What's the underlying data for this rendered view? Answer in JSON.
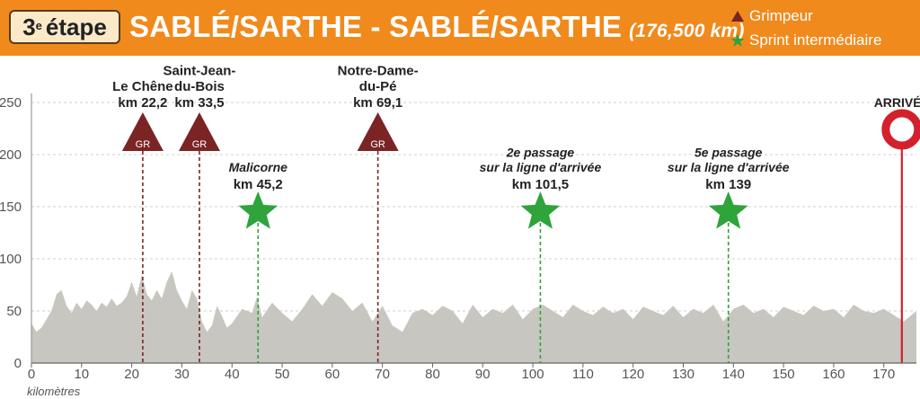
{
  "header": {
    "stage_number": "3",
    "stage_suffix": "e",
    "stage_word": "étape",
    "route": "SABLÉ/SARTHE - SABLÉ/SARTHE",
    "distance": "(176,500 km)"
  },
  "legend": [
    {
      "label": "Grimpeur",
      "symbol": "triangle",
      "color": "#7b2424"
    },
    {
      "label": "Sprint intermédiaire",
      "symbol": "star",
      "color": "#2ea43a"
    }
  ],
  "colors": {
    "header": "#f08a1d",
    "profile_fill": "#c8c6c1",
    "climb": "#7b2424",
    "sprint": "#2ea43a",
    "finish": "#d4202c",
    "grid": "#cfcfcf"
  },
  "chart_data": {
    "type": "area",
    "title": "SABLÉ/SARTHE - SABLÉ/SARTHE",
    "xlabel": "kilomètres",
    "ylabel": "",
    "xlim": [
      0,
      176.5
    ],
    "ylim": [
      0,
      250
    ],
    "x_ticks": [
      0,
      10,
      20,
      30,
      40,
      50,
      60,
      70,
      80,
      90,
      100,
      110,
      120,
      130,
      140,
      150,
      160,
      170
    ],
    "y_ticks": [
      0,
      50,
      100,
      150,
      200,
      250
    ],
    "grid": "horizontal dashed",
    "profile": {
      "x": [
        0,
        1,
        2,
        3,
        4,
        5,
        6,
        7,
        8,
        9,
        10,
        11,
        12,
        13,
        14,
        15,
        16,
        17,
        18,
        19,
        20,
        21,
        22,
        23,
        24,
        25,
        26,
        27,
        28,
        29,
        30,
        31,
        32,
        33,
        34,
        35,
        36,
        37,
        38,
        39,
        40,
        42,
        44,
        45,
        46,
        48,
        50,
        52,
        54,
        56,
        58,
        60,
        62,
        64,
        66,
        68,
        70,
        72,
        74,
        76,
        78,
        80,
        82,
        84,
        86,
        88,
        90,
        92,
        94,
        96,
        98,
        100,
        102,
        104,
        106,
        108,
        110,
        112,
        114,
        116,
        118,
        120,
        122,
        124,
        126,
        128,
        130,
        132,
        134,
        136,
        138,
        140,
        142,
        144,
        146,
        148,
        150,
        152,
        154,
        156,
        158,
        160,
        162,
        164,
        166,
        168,
        170,
        172,
        174,
        176.5
      ],
      "y": [
        38,
        30,
        34,
        42,
        50,
        66,
        70,
        55,
        48,
        58,
        52,
        60,
        56,
        50,
        58,
        54,
        62,
        55,
        58,
        64,
        78,
        64,
        85,
        66,
        60,
        70,
        62,
        78,
        88,
        70,
        60,
        52,
        70,
        62,
        40,
        30,
        36,
        55,
        45,
        34,
        38,
        52,
        48,
        64,
        44,
        58,
        48,
        40,
        52,
        66,
        55,
        68,
        62,
        50,
        58,
        40,
        55,
        36,
        30,
        48,
        52,
        46,
        55,
        50,
        38,
        56,
        44,
        52,
        48,
        56,
        42,
        52,
        56,
        50,
        44,
        56,
        50,
        46,
        54,
        48,
        52,
        42,
        54,
        50,
        46,
        55,
        44,
        52,
        48,
        56,
        40,
        52,
        56,
        48,
        52,
        44,
        54,
        50,
        46,
        55,
        50,
        52,
        44,
        56,
        50,
        48,
        52,
        46,
        40,
        50
      ]
    },
    "climbs": [
      {
        "name": "Le Chêne",
        "km": 22.2,
        "km_label": "km 22,2",
        "badge": "GR"
      },
      {
        "name": "Saint-Jean-\ndu-Bois",
        "km": 33.5,
        "km_label": "km 33,5",
        "badge": "GR"
      },
      {
        "name": "Notre-Dame-\ndu-Pé",
        "km": 69.1,
        "km_label": "km 69,1",
        "badge": "GR"
      }
    ],
    "sprints": [
      {
        "name": "Malicorne",
        "km": 45.2,
        "km_label": "km 45,2"
      },
      {
        "name": "2e passage\nsur la ligne d'arrivée",
        "km": 101.5,
        "km_label": "km 101,5"
      },
      {
        "name": "5e passage\nsur la ligne d'arrivée",
        "km": 139,
        "km_label": "km 139"
      }
    ],
    "finish": {
      "label": "ARRIVÉE",
      "km": 173.6
    }
  }
}
